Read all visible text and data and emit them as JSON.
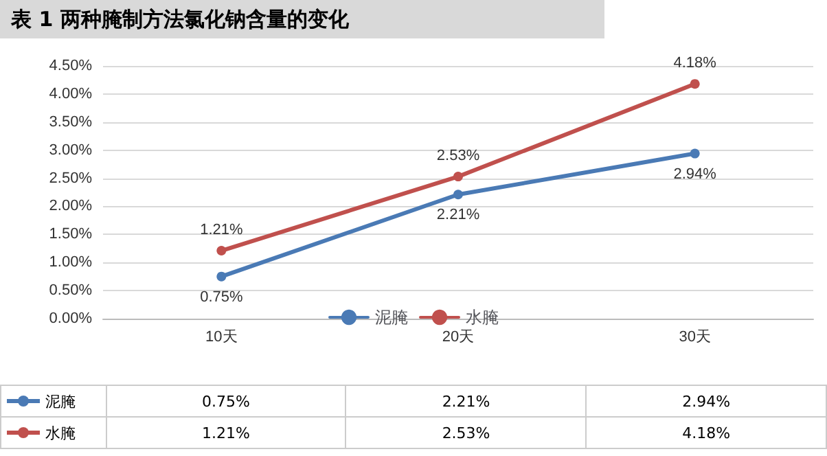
{
  "chart_data": {
    "type": "line",
    "title": "表 1  两种腌制方法氯化钠含量的变化",
    "categories": [
      "10天",
      "20天",
      "30天"
    ],
    "series": [
      {
        "name": "泥腌",
        "color": "#4a7ab5",
        "values": [
          0.75,
          2.21,
          2.94
        ],
        "value_labels": [
          "0.75%",
          "2.21%",
          "2.94%"
        ]
      },
      {
        "name": "水腌",
        "color": "#c0504d",
        "values": [
          1.21,
          2.53,
          4.18
        ],
        "value_labels": [
          "1.21%",
          "2.53%",
          "4.18%"
        ]
      }
    ],
    "ylim": [
      0,
      4.5
    ],
    "yticks": [
      {
        "value": 0,
        "label": "0.00%"
      },
      {
        "value": 0.5,
        "label": "0.50%"
      },
      {
        "value": 1,
        "label": "1.00%"
      },
      {
        "value": 1.5,
        "label": "1.50%"
      },
      {
        "value": 2,
        "label": "2.00%"
      },
      {
        "value": 2.5,
        "label": "2.50%"
      },
      {
        "value": 3,
        "label": "3.00%"
      },
      {
        "value": 3.5,
        "label": "3.50%"
      },
      {
        "value": 4,
        "label": "4.00%"
      },
      {
        "value": 4.5,
        "label": "4.50%"
      }
    ],
    "grid": "y",
    "legend": "bottom",
    "marker": "circle",
    "line_style": "solid"
  }
}
